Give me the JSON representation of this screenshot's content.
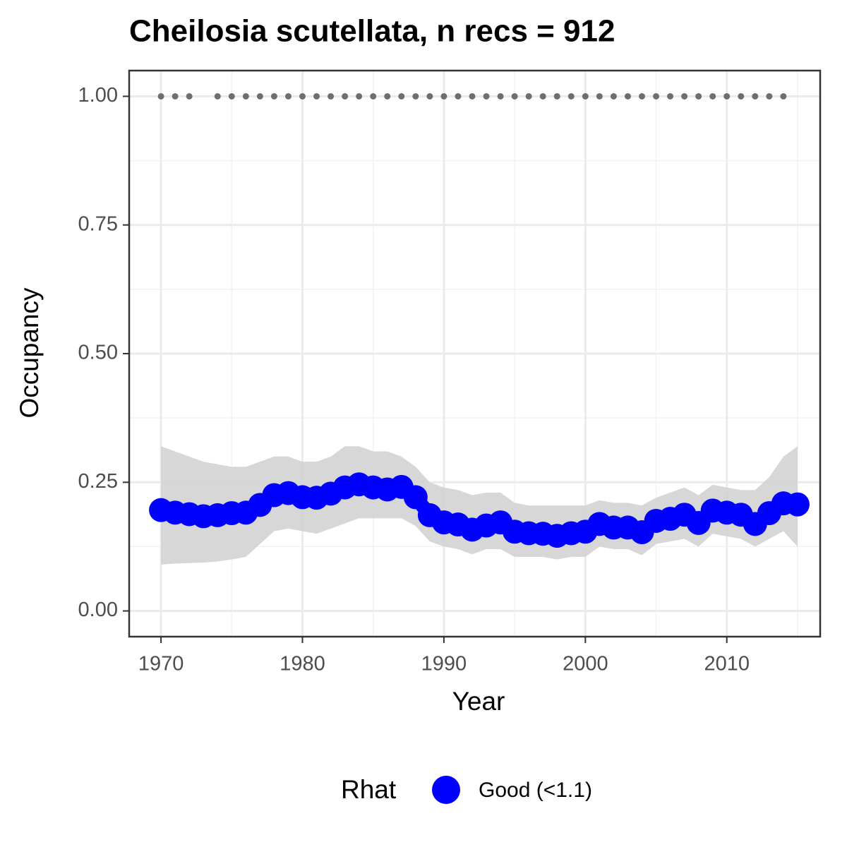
{
  "chart_data": {
    "type": "line",
    "title": "Cheilosia scutellata, n recs = 912",
    "x_label": "Year",
    "y_label": "Occupancy",
    "legend_title": "Rhat",
    "legend_position": "bottom",
    "x": [
      1970,
      1971,
      1972,
      1973,
      1974,
      1975,
      1976,
      1977,
      1978,
      1979,
      1980,
      1981,
      1982,
      1983,
      1984,
      1985,
      1986,
      1987,
      1988,
      1989,
      1990,
      1991,
      1992,
      1993,
      1994,
      1995,
      1996,
      1997,
      1998,
      1999,
      2000,
      2001,
      2002,
      2003,
      2004,
      2005,
      2006,
      2007,
      2008,
      2009,
      2010,
      2011,
      2012,
      2013,
      2014,
      2015
    ],
    "series": [
      {
        "name": "Good (<1.1)",
        "color": "#0000ff",
        "values": [
          0.196,
          0.191,
          0.188,
          0.184,
          0.186,
          0.19,
          0.191,
          0.206,
          0.225,
          0.229,
          0.221,
          0.22,
          0.228,
          0.24,
          0.246,
          0.24,
          0.236,
          0.241,
          0.221,
          0.186,
          0.172,
          0.168,
          0.158,
          0.166,
          0.172,
          0.154,
          0.151,
          0.15,
          0.146,
          0.151,
          0.154,
          0.169,
          0.162,
          0.162,
          0.153,
          0.175,
          0.179,
          0.187,
          0.171,
          0.195,
          0.191,
          0.187,
          0.169,
          0.19,
          0.209,
          0.207
        ],
        "upper": [
          0.32,
          0.31,
          0.3,
          0.29,
          0.285,
          0.28,
          0.28,
          0.29,
          0.3,
          0.3,
          0.29,
          0.29,
          0.3,
          0.32,
          0.32,
          0.31,
          0.31,
          0.3,
          0.28,
          0.25,
          0.24,
          0.235,
          0.225,
          0.23,
          0.23,
          0.21,
          0.205,
          0.205,
          0.205,
          0.205,
          0.205,
          0.215,
          0.21,
          0.21,
          0.205,
          0.22,
          0.23,
          0.24,
          0.225,
          0.245,
          0.24,
          0.235,
          0.235,
          0.26,
          0.3,
          0.32
        ],
        "lower": [
          0.09,
          0.092,
          0.093,
          0.094,
          0.096,
          0.1,
          0.105,
          0.13,
          0.155,
          0.16,
          0.155,
          0.15,
          0.16,
          0.17,
          0.18,
          0.18,
          0.18,
          0.18,
          0.165,
          0.135,
          0.125,
          0.12,
          0.11,
          0.12,
          0.12,
          0.105,
          0.105,
          0.105,
          0.1,
          0.105,
          0.105,
          0.125,
          0.12,
          0.12,
          0.108,
          0.13,
          0.135,
          0.14,
          0.125,
          0.15,
          0.145,
          0.14,
          0.125,
          0.14,
          0.155,
          0.125
        ],
        "band_color": "#d3d3d3"
      }
    ],
    "records": {
      "color": "#6e6e6e",
      "x": [
        1970,
        1971,
        1972,
        1974,
        1975,
        1976,
        1977,
        1978,
        1979,
        1980,
        1981,
        1982,
        1983,
        1984,
        1985,
        1986,
        1987,
        1988,
        1989,
        1990,
        1991,
        1992,
        1993,
        1994,
        1995,
        1996,
        1997,
        1998,
        1999,
        2000,
        2001,
        2002,
        2003,
        2004,
        2005,
        2006,
        2007,
        2008,
        2009,
        2010,
        2011,
        2012,
        2013,
        2014
      ],
      "values": [
        1,
        1,
        1,
        1,
        1,
        1,
        1,
        1,
        1,
        1,
        1,
        1,
        1,
        1,
        1,
        1,
        1,
        1,
        1,
        1,
        1,
        1,
        1,
        1,
        1,
        1,
        1,
        1,
        1,
        1,
        1,
        1,
        1,
        1,
        1,
        1,
        1,
        1,
        1,
        1,
        1,
        1,
        1,
        1
      ]
    },
    "xlim": [
      1967.75,
      2016.6
    ],
    "ylim": [
      -0.05,
      1.05
    ],
    "xticks": [
      1970,
      1980,
      1990,
      2000,
      2010
    ],
    "yticks": [
      {
        "value": 0,
        "label": "0.00"
      },
      {
        "value": 0.25,
        "label": "0.25"
      },
      {
        "value": 0.5,
        "label": "0.50"
      },
      {
        "value": 0.75,
        "label": "0.75"
      },
      {
        "value": 1,
        "label": "1.00"
      }
    ],
    "minor_xticks": [
      1975,
      1985,
      1995,
      2005,
      2015
    ],
    "minor_yticks": [
      0.125,
      0.375,
      0.625,
      0.875
    ],
    "grid": true
  }
}
